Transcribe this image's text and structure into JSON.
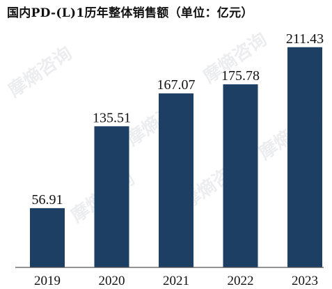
{
  "chart_data": {
    "type": "bar",
    "title": "国内PD-(L)1历年整体销售额（单位：亿元）",
    "categories": [
      "2019",
      "2020",
      "2021",
      "2022",
      "2023"
    ],
    "values": [
      56.91,
      135.51,
      167.07,
      175.78,
      211.43
    ],
    "value_labels": [
      "56.91",
      "135.51",
      "167.07",
      "175.78",
      "211.43"
    ],
    "xlabel": "",
    "ylabel": "",
    "ylim": [
      0,
      230
    ],
    "grid": false,
    "legend": "none",
    "bar_color": "#1d3f63",
    "axis_color": "#555555"
  },
  "watermark": {
    "text": "摩熵咨询"
  }
}
